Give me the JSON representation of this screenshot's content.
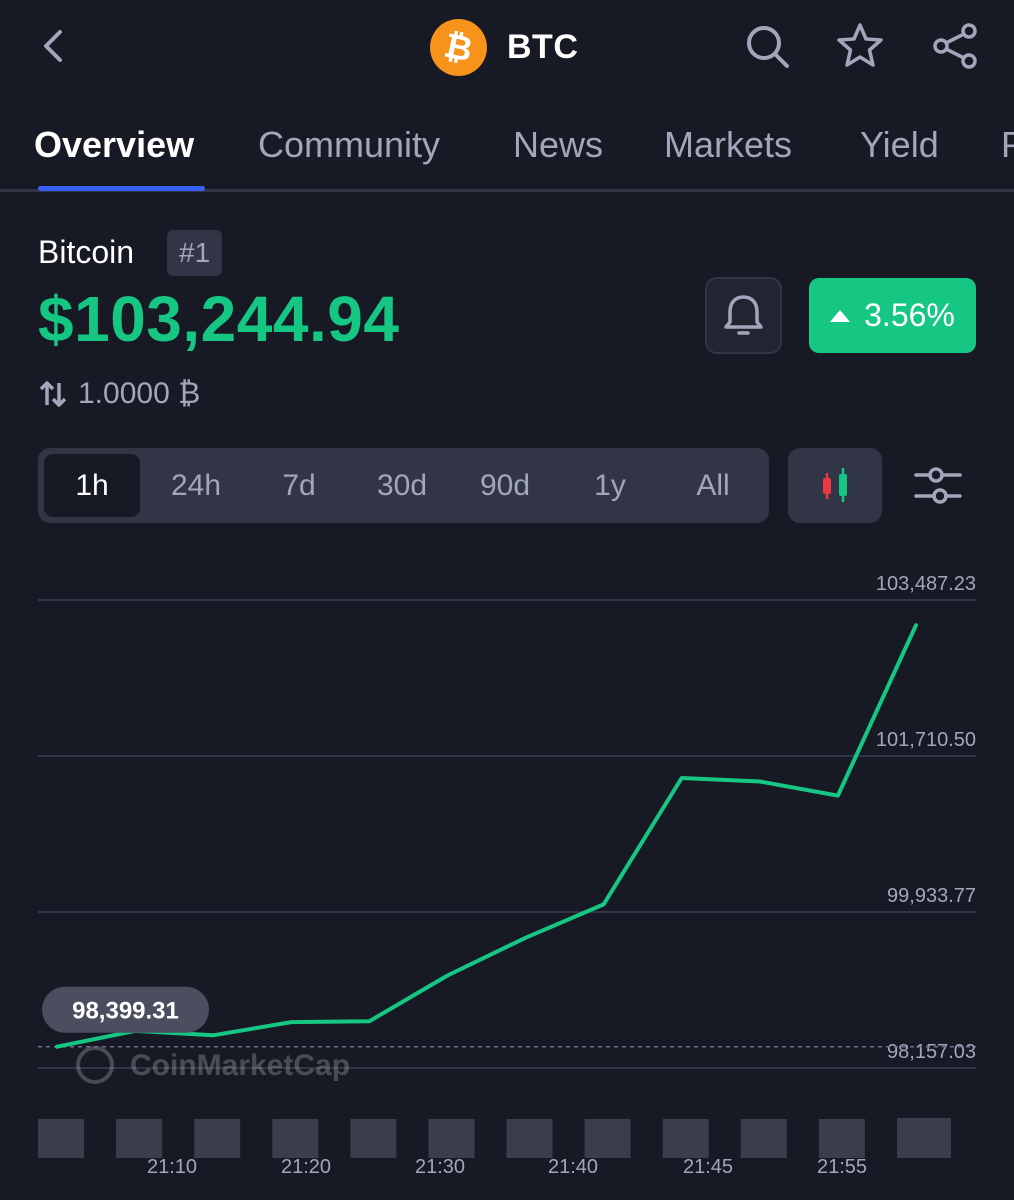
{
  "header": {
    "coin_symbol": "BTC",
    "back_icon": "chevron-left-icon",
    "search_icon": "search-icon",
    "star_icon": "star-icon",
    "share_icon": "share-icon"
  },
  "tabs": [
    {
      "label": "Overview",
      "active": true
    },
    {
      "label": "Community",
      "active": false
    },
    {
      "label": "News",
      "active": false
    },
    {
      "label": "Markets",
      "active": false
    },
    {
      "label": "Yield",
      "active": false
    }
  ],
  "coin": {
    "name": "Bitcoin",
    "rank": "#1",
    "price": "$103,244.94",
    "change": "3.56%",
    "change_direction": "up",
    "conversion": "1.0000 ₿"
  },
  "ranges": [
    {
      "label": "1h",
      "active": true
    },
    {
      "label": "24h",
      "active": false
    },
    {
      "label": "7d",
      "active": false
    },
    {
      "label": "30d",
      "active": false
    },
    {
      "label": "90d",
      "active": false
    },
    {
      "label": "1y",
      "active": false
    },
    {
      "label": "All",
      "active": false
    }
  ],
  "colors": {
    "background": "#171924",
    "accent_green": "#16c784",
    "accent_red": "#ea3943",
    "tab_indicator": "#3861fb",
    "btc_orange": "#f7931a"
  },
  "chart_data": {
    "type": "line",
    "y_ticks": [
      "103,487.23",
      "101,710.50",
      "99,933.77",
      "98,157.03"
    ],
    "y_tick_values": [
      103487.23,
      101710.5,
      99933.77,
      98157.03
    ],
    "x_ticks": [
      "21:10",
      "21:20",
      "21:30",
      "21:40",
      "21:45",
      "21:55"
    ],
    "start_label": "98,399.31",
    "start_value": 98399.31,
    "watermark": "CoinMarketCap",
    "series": [
      {
        "values": [
          98399.31,
          98580,
          98530,
          98680,
          98690,
          99210,
          99640,
          100020,
          101460,
          101420,
          101260,
          103200
        ]
      }
    ],
    "volume_relative": [
      0.78,
      0.78,
      0.78,
      0.78,
      0.78,
      0.78,
      0.78,
      0.78,
      0.78,
      0.78,
      0.78,
      0.8
    ]
  }
}
